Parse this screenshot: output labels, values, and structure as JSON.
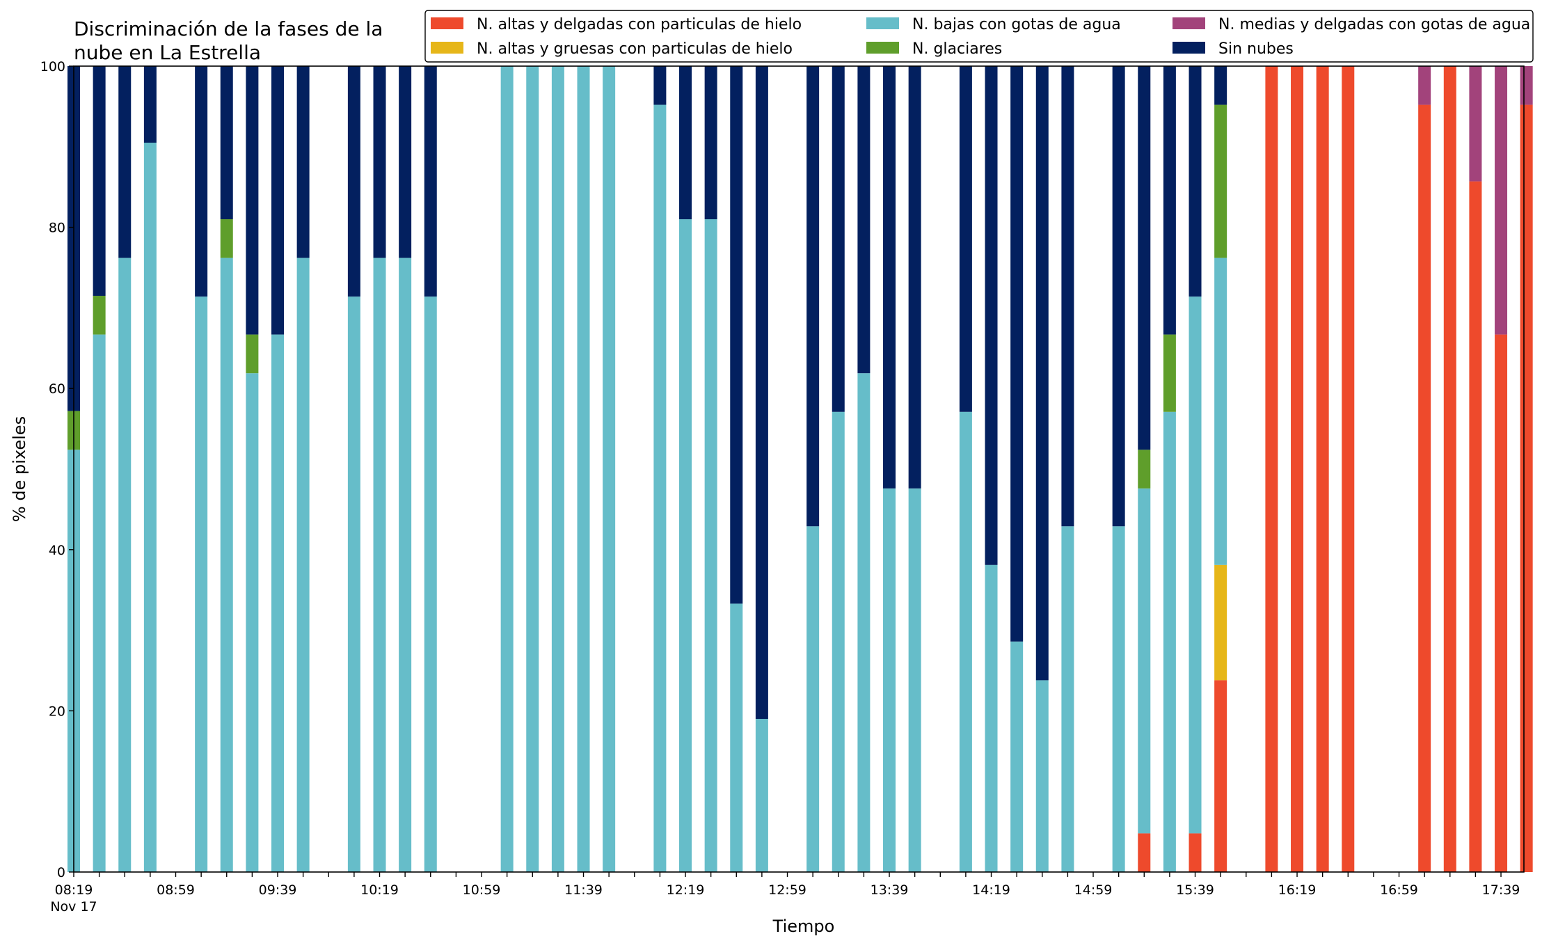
{
  "chart_data": {
    "type": "bar",
    "stacked": true,
    "title_lines": [
      "Discriminación de la fases de la",
      "nube en La Estrella"
    ],
    "xlabel": "Tiempo",
    "ylabel": "% de pixeles",
    "ylim": [
      0,
      100
    ],
    "yticks": [
      0,
      20,
      40,
      60,
      80,
      100
    ],
    "x_start_minutes": 499,
    "x_end_minutes": 1068,
    "x_step_minutes": 10,
    "x_tick_labels": [
      {
        "time": "08:19",
        "sub": "Nov 17"
      },
      {
        "time": "08:59"
      },
      {
        "time": "09:39"
      },
      {
        "time": "10:19"
      },
      {
        "time": "10:59"
      },
      {
        "time": "11:39"
      },
      {
        "time": "12:19"
      },
      {
        "time": "12:59"
      },
      {
        "time": "13:39"
      },
      {
        "time": "14:19"
      },
      {
        "time": "14:59"
      },
      {
        "time": "15:39"
      },
      {
        "time": "16:19"
      },
      {
        "time": "16:59"
      },
      {
        "time": "17:39"
      }
    ],
    "legend_position": "top",
    "series": [
      {
        "name": "N. altas y delgadas con particulas de hielo",
        "color": "#ee4a2c"
      },
      {
        "name": "N. altas y gruesas con particulas de hielo",
        "color": "#e6b619"
      },
      {
        "name": "N. bajas con gotas de agua",
        "color": "#66bdc9"
      },
      {
        "name": "N. glaciares",
        "color": "#5f9e2b"
      },
      {
        "name": "N. medias y delgadas con gotas de agua",
        "color": "#a2437b"
      },
      {
        "name": "Sin nubes",
        "color": "#03205f"
      }
    ],
    "bars": [
      {
        "x": "08:19",
        "values": [
          0,
          0,
          52.4,
          4.8,
          0,
          42.8
        ]
      },
      {
        "x": "08:29",
        "values": [
          0,
          0,
          66.7,
          4.8,
          0,
          28.5
        ]
      },
      {
        "x": "08:39",
        "values": [
          0,
          0,
          76.2,
          0,
          0,
          23.8
        ]
      },
      {
        "x": "08:49",
        "values": [
          0,
          0,
          90.5,
          0,
          0,
          9.5
        ]
      },
      {
        "x": "09:09",
        "values": [
          0,
          0,
          71.4,
          0,
          0,
          28.6
        ]
      },
      {
        "x": "09:19",
        "values": [
          0,
          0,
          76.2,
          4.8,
          0,
          19.0
        ]
      },
      {
        "x": "09:29",
        "values": [
          0,
          0,
          61.9,
          4.8,
          0,
          33.3
        ]
      },
      {
        "x": "09:39",
        "values": [
          0,
          0,
          66.7,
          0,
          0,
          33.3
        ]
      },
      {
        "x": "09:49",
        "values": [
          0,
          0,
          76.2,
          0,
          0,
          23.8
        ]
      },
      {
        "x": "10:09",
        "values": [
          0,
          0,
          71.4,
          0,
          0,
          28.6
        ]
      },
      {
        "x": "10:19",
        "values": [
          0,
          0,
          76.2,
          0,
          0,
          23.8
        ]
      },
      {
        "x": "10:29",
        "values": [
          0,
          0,
          76.2,
          0,
          0,
          23.8
        ]
      },
      {
        "x": "10:39",
        "values": [
          0,
          0,
          71.4,
          0,
          0,
          28.6
        ]
      },
      {
        "x": "11:09",
        "values": [
          0,
          0,
          100,
          0,
          0,
          0
        ]
      },
      {
        "x": "11:19",
        "values": [
          0,
          0,
          100,
          0,
          0,
          0
        ]
      },
      {
        "x": "11:29",
        "values": [
          0,
          0,
          100,
          0,
          0,
          0
        ]
      },
      {
        "x": "11:39",
        "values": [
          0,
          0,
          100,
          0,
          0,
          0
        ]
      },
      {
        "x": "11:49",
        "values": [
          0,
          0,
          100,
          0,
          0,
          0
        ]
      },
      {
        "x": "12:09",
        "values": [
          0,
          0,
          95.2,
          0,
          0,
          4.8
        ]
      },
      {
        "x": "12:19",
        "values": [
          0,
          0,
          81.0,
          0,
          0,
          19.0
        ]
      },
      {
        "x": "12:29",
        "values": [
          0,
          0,
          81.0,
          0,
          0,
          19.0
        ]
      },
      {
        "x": "12:39",
        "values": [
          0,
          0,
          33.3,
          0,
          0,
          66.7
        ]
      },
      {
        "x": "12:49",
        "values": [
          0,
          0,
          19.0,
          0,
          0,
          81.0
        ]
      },
      {
        "x": "13:09",
        "values": [
          0,
          0,
          42.9,
          0,
          0,
          57.1
        ]
      },
      {
        "x": "13:19",
        "values": [
          0,
          0,
          57.1,
          0,
          0,
          42.9
        ]
      },
      {
        "x": "13:29",
        "values": [
          0,
          0,
          61.9,
          0,
          0,
          38.1
        ]
      },
      {
        "x": "13:39",
        "values": [
          0,
          0,
          47.6,
          0,
          0,
          52.4
        ]
      },
      {
        "x": "13:49",
        "values": [
          0,
          0,
          47.6,
          0,
          0,
          52.4
        ]
      },
      {
        "x": "14:09",
        "values": [
          0,
          0,
          57.1,
          0,
          0,
          42.9
        ]
      },
      {
        "x": "14:19",
        "values": [
          0,
          0,
          38.1,
          0,
          0,
          61.9
        ]
      },
      {
        "x": "14:29",
        "values": [
          0,
          0,
          28.6,
          0,
          0,
          71.4
        ]
      },
      {
        "x": "14:39",
        "values": [
          0,
          0,
          23.8,
          0,
          0,
          76.2
        ]
      },
      {
        "x": "14:49",
        "values": [
          0,
          0,
          42.9,
          0,
          0,
          57.1
        ]
      },
      {
        "x": "15:09",
        "values": [
          0,
          0,
          42.9,
          0,
          0,
          57.1
        ]
      },
      {
        "x": "15:19",
        "values": [
          4.8,
          0,
          42.8,
          4.8,
          0,
          47.6
        ]
      },
      {
        "x": "15:29",
        "values": [
          0,
          0,
          57.1,
          9.6,
          0,
          33.3
        ]
      },
      {
        "x": "15:39",
        "values": [
          4.8,
          0,
          66.6,
          0,
          0,
          28.6
        ]
      },
      {
        "x": "15:49",
        "values": [
          23.8,
          14.3,
          38.1,
          19.0,
          0,
          4.8
        ]
      },
      {
        "x": "16:09",
        "values": [
          100,
          0,
          0,
          0,
          0,
          0
        ]
      },
      {
        "x": "16:19",
        "values": [
          100,
          0,
          0,
          0,
          0,
          0
        ]
      },
      {
        "x": "16:29",
        "values": [
          100,
          0,
          0,
          0,
          0,
          0
        ]
      },
      {
        "x": "16:39",
        "values": [
          100,
          0,
          0,
          0,
          0,
          0
        ]
      },
      {
        "x": "17:09",
        "values": [
          95.2,
          0,
          0,
          0,
          4.8,
          0
        ]
      },
      {
        "x": "17:19",
        "values": [
          100,
          0,
          0,
          0,
          0,
          0
        ]
      },
      {
        "x": "17:29",
        "values": [
          85.7,
          0,
          0,
          0,
          14.3,
          0
        ]
      },
      {
        "x": "17:39",
        "values": [
          66.7,
          0,
          0,
          0,
          33.3,
          0
        ]
      },
      {
        "x": "17:49",
        "values": [
          95.2,
          0,
          0,
          0,
          4.8,
          0
        ]
      }
    ]
  }
}
